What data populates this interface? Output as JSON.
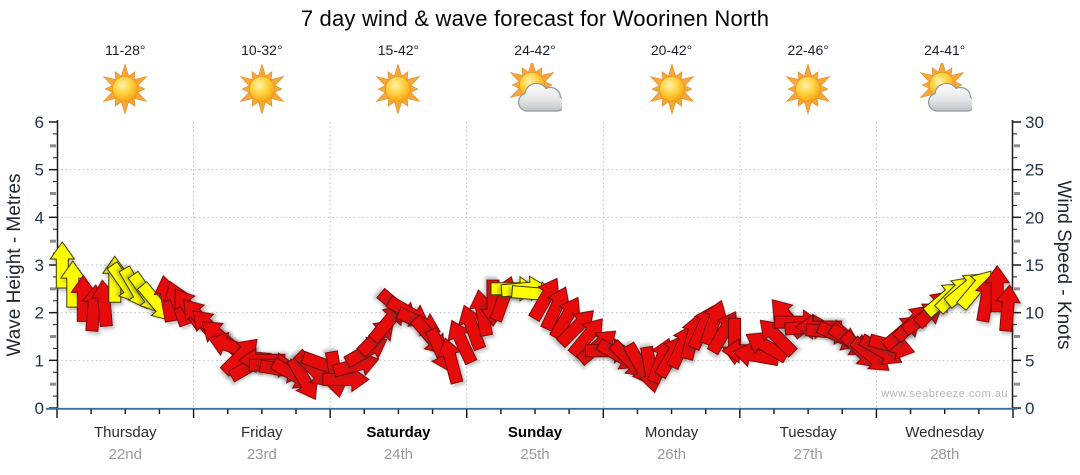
{
  "title": "7 day wind & wave forecast for Woorinen North",
  "watermark": "www.seabreeze.com.au",
  "forecast_days": [
    {
      "weekday": "Thursday",
      "date": "22nd",
      "temp": "11-28°",
      "icon": "sunny",
      "bold": false
    },
    {
      "weekday": "Friday",
      "date": "23rd",
      "temp": "10-32°",
      "icon": "sunny",
      "bold": false
    },
    {
      "weekday": "Saturday",
      "date": "24th",
      "temp": "15-42°",
      "icon": "sunny",
      "bold": true
    },
    {
      "weekday": "Sunday",
      "date": "25th",
      "temp": "24-42°",
      "icon": "partly-cloudy",
      "bold": true
    },
    {
      "weekday": "Monday",
      "date": "26th",
      "temp": "20-42°",
      "icon": "sunny",
      "bold": false
    },
    {
      "weekday": "Tuesday",
      "date": "27th",
      "temp": "22-46°",
      "icon": "sunny",
      "bold": false
    },
    {
      "weekday": "Wednesday",
      "date": "28th",
      "temp": "24-41°",
      "icon": "partly-cloudy",
      "bold": false
    }
  ],
  "chart_data": {
    "type": "wind-arrow-timeseries",
    "left_axis": {
      "label": "Wave Height - Metres",
      "ticks": [
        0,
        1,
        2,
        3,
        4,
        5,
        6
      ],
      "range": [
        0,
        6
      ]
    },
    "right_axis": {
      "label": "Wind Speed - Knots",
      "ticks": [
        0,
        5,
        10,
        15,
        20,
        25,
        30
      ],
      "range": [
        0,
        30
      ]
    },
    "grid": "dotted-at-day-boundaries-and-integer-levels",
    "legend_colors": {
      "light_wind_arrow": "#ffff00",
      "strong_wind_arrow": "#e60c0c"
    },
    "arrow_format": [
      "wind_speed_knots",
      "direction_deg_0_is_up",
      "color_Y_or_R"
    ],
    "arrows": [
      [
        15,
        0,
        "Y"
      ],
      [
        13,
        0,
        "Y"
      ],
      [
        11.5,
        0,
        "R"
      ],
      [
        10.5,
        5,
        "R"
      ],
      [
        11,
        355,
        "R"
      ],
      [
        13.5,
        0,
        "Y"
      ],
      [
        13,
        145,
        "Y"
      ],
      [
        12.5,
        150,
        "Y"
      ],
      [
        12,
        145,
        "Y"
      ],
      [
        11,
        140,
        "Y"
      ],
      [
        11.5,
        350,
        "R"
      ],
      [
        11,
        340,
        "R"
      ],
      [
        10.5,
        325,
        "R"
      ],
      [
        9.5,
        320,
        "R"
      ],
      [
        8.5,
        315,
        "R"
      ],
      [
        7.5,
        310,
        "R"
      ],
      [
        6.5,
        290,
        "R"
      ],
      [
        5.5,
        45,
        "R"
      ],
      [
        4.5,
        60,
        "R"
      ],
      [
        5,
        270,
        "R"
      ],
      [
        4.5,
        90,
        "R"
      ],
      [
        4,
        100,
        "R"
      ],
      [
        3.5,
        120,
        "R"
      ],
      [
        3,
        150,
        "R"
      ],
      [
        4,
        135,
        "R"
      ],
      [
        4.5,
        110,
        "R"
      ],
      [
        3.5,
        170,
        "R"
      ],
      [
        3,
        90,
        "R"
      ],
      [
        4.5,
        75,
        "R"
      ],
      [
        6,
        60,
        "R"
      ],
      [
        7.5,
        45,
        "R"
      ],
      [
        9,
        40,
        "R"
      ],
      [
        10.5,
        130,
        "R"
      ],
      [
        10,
        120,
        "R"
      ],
      [
        9,
        115,
        "R"
      ],
      [
        7.5,
        140,
        "R"
      ],
      [
        6,
        155,
        "R"
      ],
      [
        5,
        345,
        "R"
      ],
      [
        7,
        335,
        "R"
      ],
      [
        8.5,
        340,
        "R"
      ],
      [
        10,
        350,
        "R"
      ],
      [
        11,
        180,
        "R"
      ],
      [
        11.5,
        20,
        "R"
      ],
      [
        12.5,
        90,
        "Y"
      ],
      [
        12.5,
        85,
        "Y"
      ],
      [
        12,
        95,
        "Y"
      ],
      [
        11.5,
        30,
        "R"
      ],
      [
        10.5,
        25,
        "R"
      ],
      [
        9.5,
        30,
        "R"
      ],
      [
        8.5,
        45,
        "R"
      ],
      [
        7.5,
        40,
        "R"
      ],
      [
        6.5,
        50,
        "R"
      ],
      [
        6,
        90,
        "R"
      ],
      [
        5.5,
        120,
        "R"
      ],
      [
        5,
        135,
        "R"
      ],
      [
        4.5,
        150,
        "R"
      ],
      [
        4,
        170,
        "R"
      ],
      [
        5,
        20,
        "R"
      ],
      [
        5.5,
        30,
        "R"
      ],
      [
        6.5,
        25,
        "R"
      ],
      [
        7.5,
        15,
        "R"
      ],
      [
        8.5,
        25,
        "R"
      ],
      [
        9,
        20,
        "R"
      ],
      [
        8,
        30,
        "R"
      ],
      [
        7,
        180,
        "R"
      ],
      [
        6,
        270,
        "R"
      ],
      [
        5.5,
        280,
        "R"
      ],
      [
        6.5,
        300,
        "R"
      ],
      [
        7.5,
        315,
        "R"
      ],
      [
        9.5,
        320,
        "R"
      ],
      [
        9,
        90,
        "R"
      ],
      [
        8.5,
        85,
        "R"
      ],
      [
        8.5,
        270,
        "R"
      ],
      [
        8,
        95,
        "R"
      ],
      [
        7.5,
        115,
        "R"
      ],
      [
        7,
        125,
        "R"
      ],
      [
        6,
        135,
        "R"
      ],
      [
        5.5,
        130,
        "R"
      ],
      [
        6,
        120,
        "R"
      ],
      [
        6.5,
        105,
        "R"
      ],
      [
        8,
        50,
        "R"
      ],
      [
        9,
        45,
        "R"
      ],
      [
        9.5,
        55,
        "R"
      ],
      [
        10.5,
        45,
        "R"
      ],
      [
        11.5,
        50,
        "Y"
      ],
      [
        12,
        45,
        "Y"
      ],
      [
        12.5,
        50,
        "Y"
      ],
      [
        12.5,
        40,
        "Y"
      ],
      [
        11.5,
        10,
        "R"
      ],
      [
        12.5,
        0,
        "R"
      ],
      [
        10.5,
        5,
        "R"
      ]
    ]
  }
}
